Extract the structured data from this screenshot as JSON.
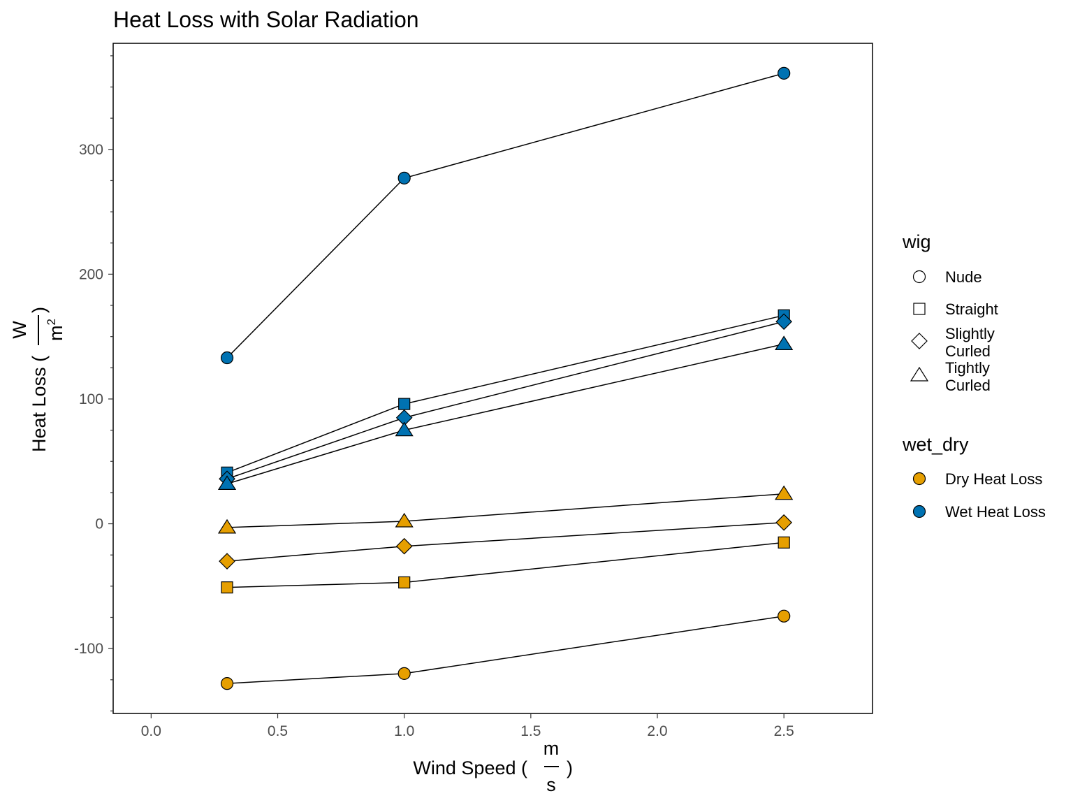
{
  "chart_data": {
    "type": "line",
    "title": "Heat Loss with Solar Radiation",
    "xlabel": {
      "text": "Wind Speed (",
      "frac_num": "m",
      "frac_den": "s",
      "close": ")"
    },
    "ylabel": {
      "text": "Heat Loss (",
      "frac_num": "W",
      "frac_den": "m",
      "frac_den_sup": "2",
      "close": ")"
    },
    "xlim": [
      -0.15,
      2.85
    ],
    "ylim": [
      -152,
      385
    ],
    "x_ticks": [
      0.0,
      0.5,
      1.0,
      1.5,
      2.0,
      2.5
    ],
    "x_tick_labels": [
      "0.0",
      "0.5",
      "1.0",
      "1.5",
      "2.0",
      "2.5"
    ],
    "y_ticks": [
      -100,
      0,
      100,
      200,
      300
    ],
    "y_tick_labels": [
      "-100",
      "0",
      "100",
      "200",
      "300"
    ],
    "y_minor_ticks": [
      -150,
      -125,
      -75,
      -50,
      -25,
      25,
      50,
      75,
      125,
      150,
      175,
      225,
      250,
      275,
      325,
      350,
      375
    ],
    "grid": false,
    "legend_position": "right",
    "series": [
      {
        "wig": "Nude",
        "wet_dry": "Wet Heat Loss",
        "x": [
          0.3,
          1.0,
          2.5
        ],
        "y": [
          133,
          277,
          361
        ]
      },
      {
        "wig": "Straight",
        "wet_dry": "Wet Heat Loss",
        "x": [
          0.3,
          1.0,
          2.5
        ],
        "y": [
          41,
          96,
          167
        ]
      },
      {
        "wig": "Slightly Curled",
        "wet_dry": "Wet Heat Loss",
        "x": [
          0.3,
          1.0,
          2.5
        ],
        "y": [
          36,
          85,
          162
        ]
      },
      {
        "wig": "Tightly Curled",
        "wet_dry": "Wet Heat Loss",
        "x": [
          0.3,
          1.0,
          2.5
        ],
        "y": [
          32,
          75,
          144
        ]
      },
      {
        "wig": "Tightly Curled",
        "wet_dry": "Dry Heat Loss",
        "x": [
          0.3,
          1.0,
          2.5
        ],
        "y": [
          -3,
          2,
          24
        ]
      },
      {
        "wig": "Slightly Curled",
        "wet_dry": "Dry Heat Loss",
        "x": [
          0.3,
          1.0,
          2.5
        ],
        "y": [
          -30,
          -18,
          1
        ]
      },
      {
        "wig": "Straight",
        "wet_dry": "Dry Heat Loss",
        "x": [
          0.3,
          1.0,
          2.5
        ],
        "y": [
          -51,
          -47,
          -15
        ]
      },
      {
        "wig": "Nude",
        "wet_dry": "Dry Heat Loss",
        "x": [
          0.3,
          1.0,
          2.5
        ],
        "y": [
          -128,
          -120,
          -74
        ]
      }
    ],
    "legends": [
      {
        "title": "wig",
        "items": [
          {
            "label": [
              "Nude"
            ],
            "shape": "circle"
          },
          {
            "label": [
              "Straight"
            ],
            "shape": "square"
          },
          {
            "label": [
              "Slightly",
              "Curled"
            ],
            "shape": "diamond"
          },
          {
            "label": [
              "Tightly",
              "Curled"
            ],
            "shape": "triangle"
          }
        ]
      },
      {
        "title": "wet_dry",
        "items": [
          {
            "label": [
              "Dry Heat Loss"
            ],
            "color_key": "Dry Heat Loss"
          },
          {
            "label": [
              "Wet Heat Loss"
            ],
            "color_key": "Wet Heat Loss"
          }
        ]
      }
    ],
    "colors": {
      "Dry Heat Loss": "#E69F00",
      "Wet Heat Loss": "#0072B2"
    },
    "shape_map": {
      "Nude": "circle",
      "Straight": "square",
      "Slightly Curled": "diamond",
      "Tightly Curled": "triangle"
    }
  }
}
